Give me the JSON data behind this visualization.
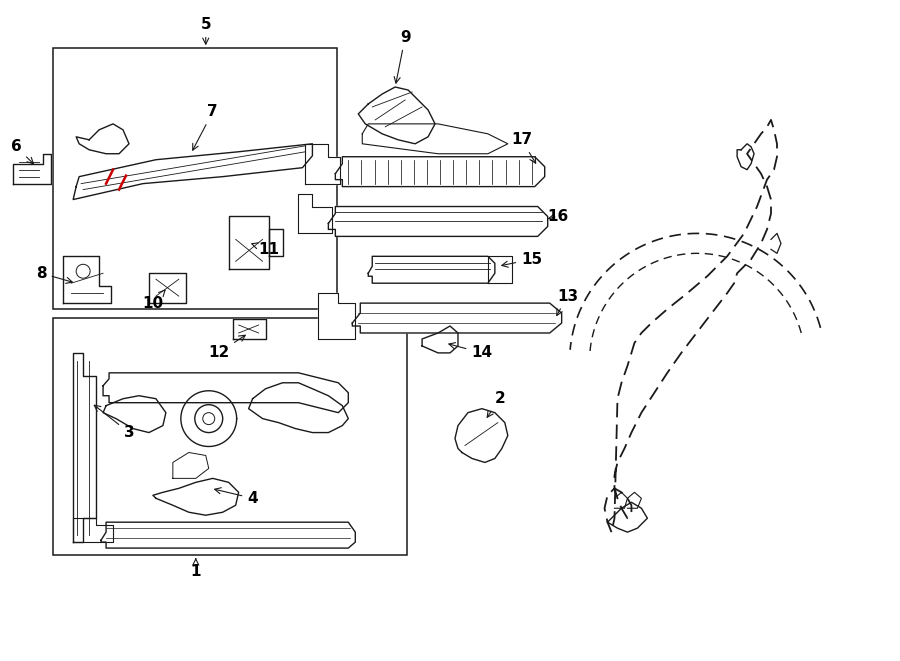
{
  "bg_color": "#ffffff",
  "line_color": "#1a1a1a",
  "red_color": "#cc0000",
  "fig_width": 9.0,
  "fig_height": 6.61
}
